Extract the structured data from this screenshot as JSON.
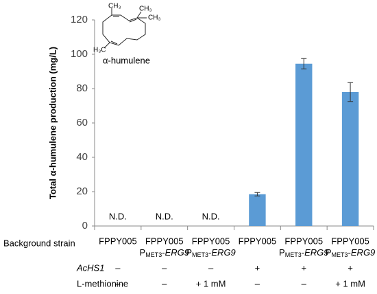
{
  "chart_data": {
    "type": "bar",
    "y_label": "Total α-humulene production (mg/L)",
    "categories": [
      "FPPY005",
      "FPPY005",
      "FPPY005",
      "FPPY005",
      "FPPY005",
      "FPPY005"
    ],
    "promoter": [
      null,
      {
        "p": "P",
        "sub": "MET3",
        "dash": "-",
        "gene": "ERG9"
      },
      {
        "p": "P",
        "sub": "MET3",
        "dash": "-",
        "gene": "ERG9"
      },
      null,
      {
        "p": "P",
        "sub": "MET3",
        "dash": "-",
        "gene": "ERG9"
      },
      {
        "p": "P",
        "sub": "MET3",
        "dash": "-",
        "gene": "ERG9"
      }
    ],
    "values": [
      null,
      null,
      null,
      18.5,
      94.5,
      78
    ],
    "errors": [
      null,
      null,
      null,
      1,
      3,
      5.5
    ],
    "value_labels": [
      "N.D.",
      "N.D.",
      "N.D.",
      null,
      null,
      null
    ],
    "color": "#5b9bd5",
    "ylim": [
      0,
      120
    ],
    "yticks": [
      0,
      20,
      40,
      60,
      80,
      100,
      120
    ],
    "rows": [
      {
        "label": "Background strain"
      },
      {
        "label": "AcHS1",
        "cells": [
          "–",
          "–",
          "–",
          "+",
          "+",
          "+"
        ]
      },
      {
        "label": "L-methionine",
        "cells": [
          "–",
          "–",
          "+ 1 mM",
          "–",
          "–",
          "+ 1 mM"
        ]
      }
    ],
    "molecule": {
      "name": "α-humulene",
      "labels": [
        "CH₃",
        "CH₃",
        "CH₃",
        "H₃C"
      ]
    }
  }
}
